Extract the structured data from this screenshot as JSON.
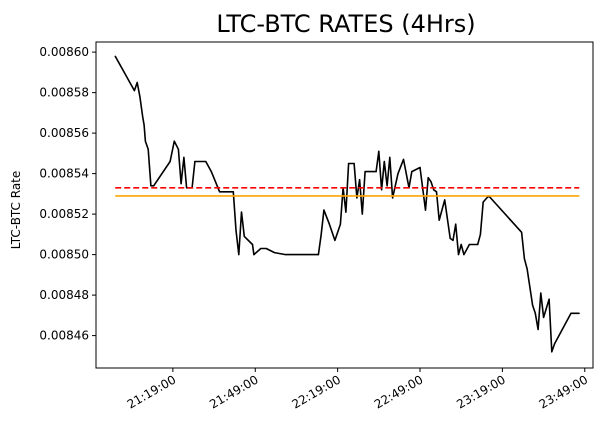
{
  "chart_data": {
    "type": "line",
    "title": "LTC-BTC RATES (4Hrs)",
    "xlabel": "",
    "ylabel": "LTC-BTC Rate",
    "x_tick_labels": [
      "21:19:00",
      "21:49:00",
      "22:19:00",
      "22:49:00",
      "23:19:00",
      "23:49:00"
    ],
    "y_tick_labels": [
      "0.00846",
      "0.00848",
      "0.00850",
      "0.00852",
      "0.00854",
      "0.00856",
      "0.00858",
      "0.00860"
    ],
    "xlim": [
      "20:51:00",
      "23:52:00"
    ],
    "ylim": [
      0.008444,
      0.008605
    ],
    "grid": false,
    "series": [
      {
        "color": "#000000",
        "style": "solid",
        "points": [
          [
            "20:58:00",
            0.008598
          ],
          [
            "21:05:00",
            0.008581
          ],
          [
            "21:06:00",
            0.008585
          ],
          [
            "21:07:00",
            0.008578
          ],
          [
            "21:08:00",
            0.008568
          ],
          [
            "21:08:30",
            0.008564
          ],
          [
            "21:09:00",
            0.008556
          ],
          [
            "21:10:00",
            0.008552
          ],
          [
            "21:11:00",
            0.008534
          ],
          [
            "21:12:00",
            0.008534
          ],
          [
            "21:18:00",
            0.008546
          ],
          [
            "21:19:30",
            0.008556
          ],
          [
            "21:21:00",
            0.008552
          ],
          [
            "21:22:00",
            0.008535
          ],
          [
            "21:23:00",
            0.008548
          ],
          [
            "21:24:00",
            0.008533
          ],
          [
            "21:26:00",
            0.008533
          ],
          [
            "21:27:00",
            0.008546
          ],
          [
            "21:31:00",
            0.008546
          ],
          [
            "21:33:00",
            0.008541
          ],
          [
            "21:36:00",
            0.008531
          ],
          [
            "21:41:00",
            0.008531
          ],
          [
            "21:42:00",
            0.008512
          ],
          [
            "21:43:00",
            0.0085
          ],
          [
            "21:44:00",
            0.008521
          ],
          [
            "21:45:00",
            0.008509
          ],
          [
            "21:48:00",
            0.008505
          ],
          [
            "21:48:30",
            0.0085
          ],
          [
            "21:51:00",
            0.008503
          ],
          [
            "21:53:00",
            0.008503
          ],
          [
            "21:56:00",
            0.008501
          ],
          [
            "22:00:00",
            0.0085
          ],
          [
            "22:02:00",
            0.0085
          ],
          [
            "22:12:00",
            0.0085
          ],
          [
            "22:13:00",
            0.00851
          ],
          [
            "22:14:00",
            0.008522
          ],
          [
            "22:16:00",
            0.008515
          ],
          [
            "22:18:00",
            0.008507
          ],
          [
            "22:20:00",
            0.008515
          ],
          [
            "22:21:00",
            0.008533
          ],
          [
            "22:22:00",
            0.008521
          ],
          [
            "22:23:00",
            0.008545
          ],
          [
            "22:25:00",
            0.008545
          ],
          [
            "22:26:00",
            0.008528
          ],
          [
            "22:27:00",
            0.008537
          ],
          [
            "22:28:00",
            0.00852
          ],
          [
            "22:29:00",
            0.008541
          ],
          [
            "22:33:00",
            0.008541
          ],
          [
            "22:34:00",
            0.008551
          ],
          [
            "22:35:00",
            0.008532
          ],
          [
            "22:36:00",
            0.008546
          ],
          [
            "22:37:00",
            0.008534
          ],
          [
            "22:38:00",
            0.008548
          ],
          [
            "22:39:00",
            0.008528
          ],
          [
            "22:41:00",
            0.00854
          ],
          [
            "22:43:00",
            0.008547
          ],
          [
            "22:45:00",
            0.008533
          ],
          [
            "22:46:00",
            0.008541
          ],
          [
            "22:49:00",
            0.008543
          ],
          [
            "22:51:00",
            0.008522
          ],
          [
            "22:52:00",
            0.008538
          ],
          [
            "22:53:00",
            0.008536
          ],
          [
            "22:54:00",
            0.008532
          ],
          [
            "22:55:00",
            0.008531
          ],
          [
            "22:56:00",
            0.008517
          ],
          [
            "22:58:00",
            0.008527
          ],
          [
            "23:00:00",
            0.008508
          ],
          [
            "23:01:00",
            0.008507
          ],
          [
            "23:02:00",
            0.008515
          ],
          [
            "23:03:00",
            0.0085
          ],
          [
            "23:04:00",
            0.008505
          ],
          [
            "23:05:00",
            0.0085
          ],
          [
            "23:07:00",
            0.008505
          ],
          [
            "23:10:00",
            0.008505
          ],
          [
            "23:11:00",
            0.00851
          ],
          [
            "23:12:00",
            0.008526
          ],
          [
            "23:14:00",
            0.008529
          ],
          [
            "23:26:00",
            0.008511
          ],
          [
            "23:27:00",
            0.008498
          ],
          [
            "23:28:00",
            0.008493
          ],
          [
            "23:30:00",
            0.008475
          ],
          [
            "23:31:00",
            0.008471
          ],
          [
            "23:32:00",
            0.008463
          ],
          [
            "23:33:00",
            0.008481
          ],
          [
            "23:34:00",
            0.008469
          ],
          [
            "23:36:00",
            0.008478
          ],
          [
            "23:37:00",
            0.008452
          ],
          [
            "23:38:00",
            0.008456
          ],
          [
            "23:44:00",
            0.008471
          ],
          [
            "23:47:00",
            0.008471
          ]
        ]
      }
    ],
    "reference_lines": [
      {
        "color": "#ff0000",
        "style": "dashed",
        "y": 0.008533
      },
      {
        "color": "#ffa500",
        "style": "solid",
        "y": 0.008529
      }
    ]
  }
}
